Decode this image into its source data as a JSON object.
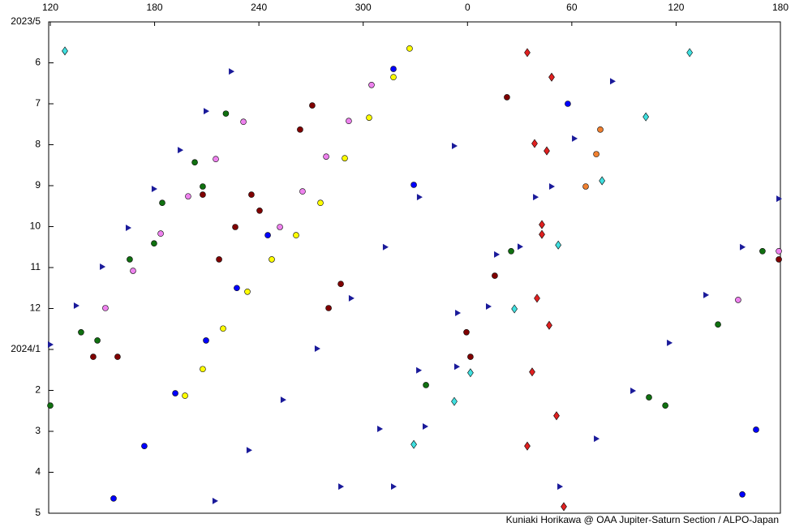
{
  "chart_data": {
    "type": "scatter",
    "xlim": [
      120,
      540
    ],
    "ylim": [
      0,
      12
    ],
    "y_reversed": true,
    "xticks": [
      120,
      180,
      240,
      300,
      {
        "value": 360,
        "label": "0"
      },
      {
        "value": 420,
        "label": "60"
      },
      {
        "value": 480,
        "label": "120"
      },
      {
        "value": 540,
        "label": "180"
      }
    ],
    "yticks": [
      {
        "value": 0,
        "label": "2023/5"
      },
      {
        "value": 1,
        "label": "6"
      },
      {
        "value": 2,
        "label": "7"
      },
      {
        "value": 3,
        "label": "8"
      },
      {
        "value": 4,
        "label": "9"
      },
      {
        "value": 5,
        "label": "10"
      },
      {
        "value": 6,
        "label": "11"
      },
      {
        "value": 7,
        "label": "12"
      },
      {
        "value": 8,
        "label": "2024/1"
      },
      {
        "value": 9,
        "label": "2"
      },
      {
        "value": 10,
        "label": "3"
      },
      {
        "value": 11,
        "label": "4"
      },
      {
        "value": 12,
        "label": "5"
      }
    ],
    "credit": "Kuniaki Horikawa @ OAA Jupiter-Saturn Section / ALPO-Japan",
    "series": [
      {
        "color": "#1a1a9a",
        "marker": "triangle",
        "x": [
          120,
          134.9,
          149.9,
          164.8,
          179.7,
          194.7,
          209.6,
          224.1,
          214.7,
          234.3,
          253.9,
          273.5,
          293.1,
          312.7,
          332.3,
          352.4,
          287.1,
          309.5,
          331.9,
          354.3,
          376.7,
          399.1,
          421.5,
          443.4,
          413.1,
          434.1,
          455.1,
          476.1,
          497.1,
          518.1,
          539.1,
          317.4,
          335.6,
          353.8,
          372.0,
          390.2,
          408.4
        ],
        "y": [
          7.88,
          6.93,
          5.98,
          5.03,
          4.08,
          3.13,
          2.18,
          1.21,
          11.7,
          10.46,
          9.23,
          7.98,
          6.75,
          5.5,
          4.28,
          3.03,
          11.35,
          9.94,
          8.51,
          7.11,
          5.68,
          4.28,
          2.85,
          1.45,
          11.35,
          10.18,
          9.01,
          7.84,
          6.67,
          5.5,
          4.32,
          11.35,
          9.88,
          8.42,
          6.95,
          5.49,
          4.02
        ]
      },
      {
        "color": "#0000ff",
        "marker": "circle",
        "x": [
          156.4,
          174.1,
          191.9,
          209.6,
          227.3,
          245.1,
          317.4,
          526.0,
          518.1,
          417.7,
          329.1
        ],
        "y": [
          11.64,
          10.36,
          9.07,
          7.78,
          6.5,
          5.21,
          1.15,
          9.96,
          11.54,
          2.0,
          3.98
        ]
      },
      {
        "color": "#e02020",
        "marker": "diamond",
        "x": [
          394.4,
          398.6,
          402.8,
          407.0,
          411.2,
          415.4,
          408.4,
          405.6,
          402.8,
          400.0,
          397.2,
          394.4
        ],
        "y": [
          0.75,
          2.97,
          5.19,
          7.41,
          9.62,
          11.84,
          1.35,
          3.15,
          4.95,
          6.75,
          8.55,
          10.36
        ]
      },
      {
        "color": "#800000",
        "marker": "circle",
        "x": [
          217.1,
          226.4,
          235.7,
          207.7,
          240.4,
          270.7,
          263.7,
          280.1,
          287.1,
          359.4,
          361.7,
          144.7,
          158.7,
          375.7,
          382.7,
          539.1
        ],
        "y": [
          5.8,
          5.01,
          4.22,
          4.22,
          4.61,
          2.04,
          2.63,
          6.99,
          6.4,
          7.58,
          8.18,
          8.18,
          8.18,
          6.2,
          1.84,
          5.8
        ]
      },
      {
        "color": "#107010",
        "marker": "circle",
        "x": [
          203.1,
          207.7,
          184.4,
          179.7,
          165.7,
          221.0,
          137.7,
          147.1,
          385.1,
          464.4,
          473.8,
          504.1,
          336.1,
          529.7,
          120
        ],
        "y": [
          3.43,
          4.02,
          4.42,
          5.41,
          5.8,
          2.24,
          7.58,
          7.78,
          5.6,
          9.17,
          9.37,
          7.39,
          8.87,
          5.6,
          9.37
        ]
      },
      {
        "color": "#40e0e0",
        "marker": "diamond",
        "x": [
          487.8,
          462.6,
          437.4,
          412.2,
          387.0,
          361.7,
          128.4,
          352.4,
          329.1
        ],
        "y": [
          0.75,
          2.32,
          3.88,
          5.45,
          7.01,
          8.57,
          0.71,
          9.27,
          10.32
        ]
      },
      {
        "color": "#ee82ee",
        "marker": "circle",
        "x": [
          231.1,
          215.2,
          199.3,
          183.5,
          167.6,
          151.7,
          304.8,
          291.7,
          278.7,
          265.1,
          252.1,
          515.7,
          539.1
        ],
        "y": [
          2.44,
          3.35,
          4.26,
          5.17,
          6.08,
          6.99,
          1.54,
          2.42,
          3.29,
          4.14,
          5.01,
          6.79,
          5.6
        ]
      },
      {
        "color": "#ffff00",
        "marker": "circle",
        "x": [
          326.7,
          317.4,
          303.4,
          289.4,
          275.4,
          261.4,
          247.4,
          233.4,
          219.4,
          207.7,
          197.5
        ],
        "y": [
          0.65,
          1.35,
          2.34,
          3.33,
          4.42,
          5.21,
          5.8,
          6.59,
          7.49,
          8.48,
          9.13
        ]
      },
      {
        "color": "#f08030",
        "marker": "circle",
        "x": [
          436.4,
          434.1,
          428.0
        ],
        "y": [
          2.63,
          3.23,
          4.02
        ]
      }
    ]
  }
}
